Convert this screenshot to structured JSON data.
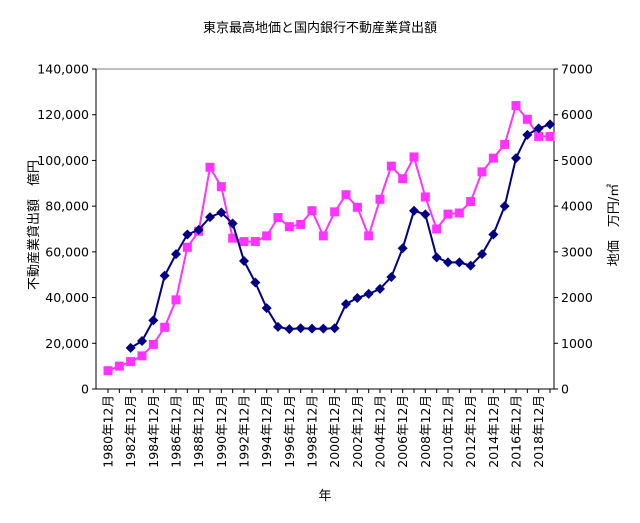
{
  "chart_data": {
    "type": "line",
    "title": "東京最高地価と国内銀行不動産業貸出額",
    "xlabel": "年",
    "ylabel_left": "不動産業貸出額　億円",
    "ylabel_right": "地価　万円/㎡",
    "ylim_left": [
      0,
      140000
    ],
    "ylim_right": [
      0,
      7000
    ],
    "yticks_left": [
      "0",
      "20,000",
      "40,000",
      "60,000",
      "80,000",
      "100,000",
      "120,000",
      "140,000"
    ],
    "yticks_right": [
      "0",
      "1000",
      "2000",
      "3000",
      "4000",
      "5000",
      "6000",
      "7000"
    ],
    "x_tick_labels": [
      "1980年12月",
      "1982年12月",
      "1984年12月",
      "1986年12月",
      "1988年12月",
      "1990年12月",
      "1992年12月",
      "1994年12月",
      "1996年12月",
      "1998年12月",
      "2000年12月",
      "2002年12月",
      "2004年12月",
      "2006年12月",
      "2008年12月",
      "2010年12月",
      "2012年12月",
      "2014年12月",
      "2016年12月",
      "2018年12月"
    ],
    "x": [
      1980,
      1981,
      1982,
      1983,
      1984,
      1985,
      1986,
      1987,
      1988,
      1989,
      1990,
      1991,
      1992,
      1993,
      1994,
      1995,
      1996,
      1997,
      1998,
      1999,
      2000,
      2001,
      2002,
      2003,
      2004,
      2005,
      2006,
      2007,
      2008,
      2009,
      2010,
      2011,
      2012,
      2013,
      2014,
      2015,
      2016,
      2017,
      2018,
      2019
    ],
    "grid": false,
    "series": [
      {
        "axis": "left",
        "color": "#FF33FF",
        "marker": "square",
        "values": [
          8000,
          10000,
          12000,
          14500,
          19500,
          27000,
          39000,
          62000,
          69000,
          97000,
          88500,
          66000,
          64500,
          64500,
          67000,
          75000,
          71000,
          72000,
          78000,
          67000,
          77500,
          85000,
          79500,
          67000,
          83000,
          97500,
          92000,
          101500,
          84000,
          70000,
          76500,
          77000,
          82000,
          95000,
          101000,
          107000,
          124000,
          118000,
          110500,
          110500
        ]
      },
      {
        "axis": "right",
        "color": "#000080",
        "marker": "diamond",
        "values": [
          null,
          null,
          900,
          1050,
          1500,
          2480,
          2950,
          3380,
          3480,
          3760,
          3860,
          3620,
          2800,
          2330,
          1770,
          1360,
          1310,
          1330,
          1320,
          1320,
          1330,
          1860,
          1990,
          2080,
          2190,
          2450,
          3080,
          3900,
          3820,
          2880,
          2770,
          2770,
          2700,
          2950,
          3380,
          4000,
          5050,
          5560,
          5700,
          5790
        ]
      }
    ]
  }
}
